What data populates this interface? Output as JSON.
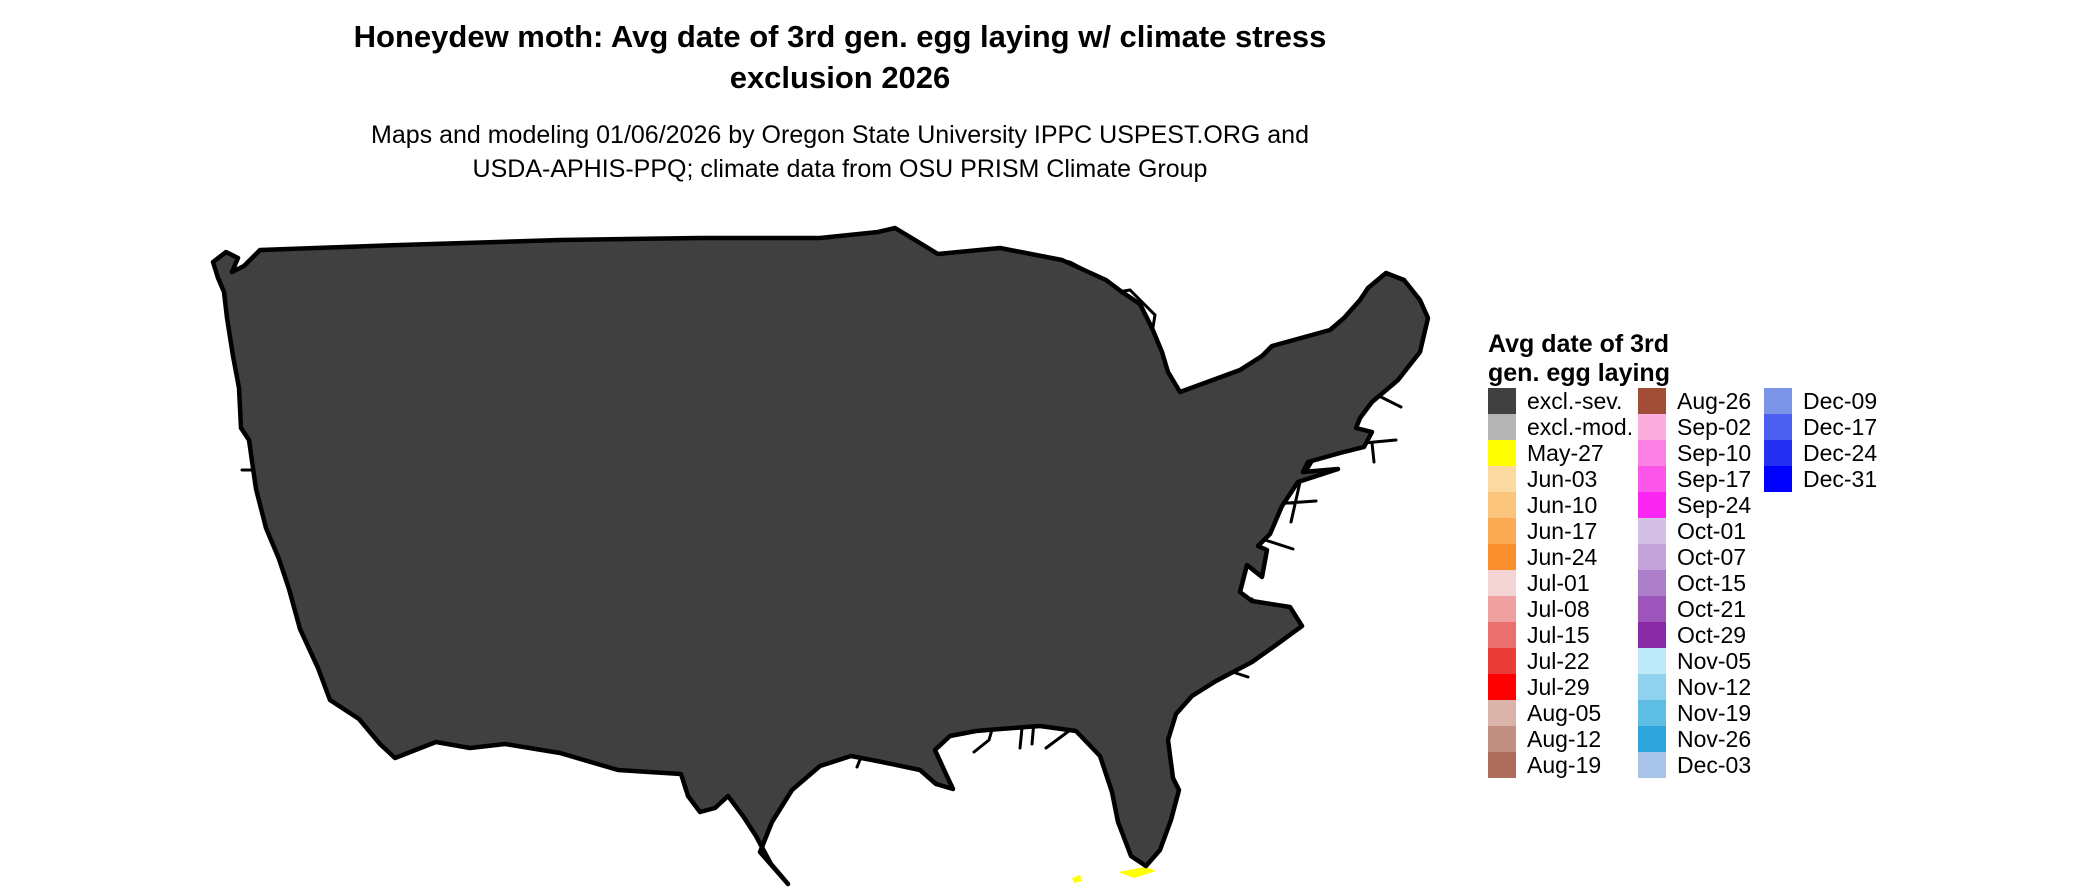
{
  "title": {
    "line1": "Honeydew moth: Avg date of 3rd gen. egg laying w/ climate stress",
    "line2": "exclusion 2026"
  },
  "subtitle": {
    "line1": "Maps and modeling 01/06/2026 by Oregon State University IPPC USPEST.ORG and",
    "line2": "USDA-APHIS-PPQ; climate data from OSU PRISM Climate Group"
  },
  "map": {
    "type": "choropleth raster of contiguous United States with state boundaries",
    "no_data_color": "#ffffff",
    "water_color": "#ffffff",
    "border_color": "#000000"
  },
  "legend": {
    "title_line1": "Avg date of 3rd",
    "title_line2": "gen. egg laying",
    "columns": [
      {
        "entries": [
          {
            "label": "excl.-sev.",
            "color": "#404040"
          },
          {
            "label": "excl.-mod.",
            "color": "#b4b4b4"
          },
          {
            "label": "May-27",
            "color": "#ffff00"
          },
          {
            "label": "Jun-03",
            "color": "#fcd9a0"
          },
          {
            "label": "Jun-10",
            "color": "#fcc57e"
          },
          {
            "label": "Jun-17",
            "color": "#fcab55"
          },
          {
            "label": "Jun-24",
            "color": "#f98e2d"
          },
          {
            "label": "Jul-01",
            "color": "#f3d3d3"
          },
          {
            "label": "Jul-08",
            "color": "#efa0a0"
          },
          {
            "label": "Jul-15",
            "color": "#ec6f6f"
          },
          {
            "label": "Jul-22",
            "color": "#ea3d3a"
          },
          {
            "label": "Jul-29",
            "color": "#fe0000"
          },
          {
            "label": "Aug-05",
            "color": "#dab4aa"
          },
          {
            "label": "Aug-12",
            "color": "#c29082"
          },
          {
            "label": "Aug-19",
            "color": "#ad6c5c"
          }
        ]
      },
      {
        "entries": [
          {
            "label": "Aug-26",
            "color": "#a24e36"
          },
          {
            "label": "Sep-02",
            "color": "#fbaede"
          },
          {
            "label": "Sep-10",
            "color": "#fb82e4"
          },
          {
            "label": "Sep-17",
            "color": "#fb55e9"
          },
          {
            "label": "Sep-24",
            "color": "#fb26f1"
          },
          {
            "label": "Oct-01",
            "color": "#d5c0e5"
          },
          {
            "label": "Oct-07",
            "color": "#c4a2da"
          },
          {
            "label": "Oct-15",
            "color": "#ac7dc8"
          },
          {
            "label": "Oct-21",
            "color": "#9d55bb"
          },
          {
            "label": "Oct-29",
            "color": "#8b2aa6"
          },
          {
            "label": "Nov-05",
            "color": "#bde9f9"
          },
          {
            "label": "Nov-12",
            "color": "#90d2ee"
          },
          {
            "label": "Nov-19",
            "color": "#5ebde5"
          },
          {
            "label": "Nov-26",
            "color": "#2da5da"
          },
          {
            "label": "Dec-03",
            "color": "#a8c4e8"
          }
        ]
      },
      {
        "entries": [
          {
            "label": "Dec-09",
            "color": "#7b94e8"
          },
          {
            "label": "Dec-17",
            "color": "#4b5ff0"
          },
          {
            "label": "Dec-24",
            "color": "#2530f2"
          },
          {
            "label": "Dec-31",
            "color": "#0000fe"
          }
        ]
      }
    ]
  }
}
